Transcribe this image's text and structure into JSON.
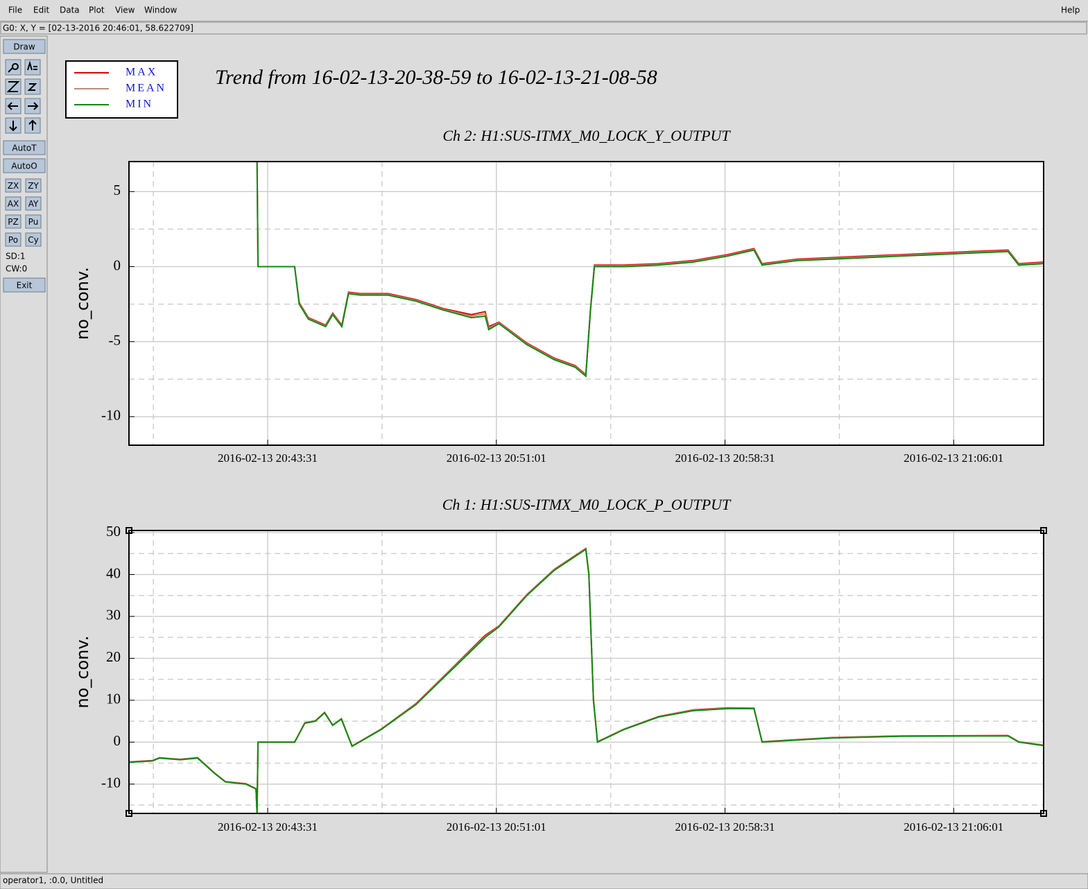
{
  "menu": [
    "File",
    "Edit",
    "Data",
    "Plot",
    "View",
    "Window"
  ],
  "help": "Help",
  "status": "G0: X, Y = [02-13-2016 20:46:01, 58.622709]",
  "toolbar": {
    "draw": "Draw",
    "auto": [
      "AutoT",
      "AutoO"
    ],
    "buttons": [
      "ZX",
      "ZY",
      "AX",
      "AY",
      "PZ",
      "Pu",
      "Po",
      "Cy"
    ],
    "info": [
      "SD:1",
      "CW:0"
    ],
    "exit": "Exit"
  },
  "footer": "operator1, :0.0, Untitled",
  "trend_title": "Trend from 16-02-13-20-38-59 to 16-02-13-21-08-58",
  "chart_data": [
    {
      "type": "line",
      "title": "Ch 2: H1:SUS-ITMX_M0_LOCK_Y_OUTPUT",
      "ylabel": "no_conv.",
      "x": [
        "2016-02-13 20:43:10",
        "2016-02-13 20:43:12",
        "2016-02-13 20:44:24",
        "2016-02-13 20:44:33",
        "2016-02-13 20:44:51",
        "2016-02-13 20:45:25",
        "2016-02-13 20:45:39",
        "2016-02-13 20:45:57",
        "2016-02-13 20:46:10",
        "2016-02-13 20:46:33",
        "2016-02-13 20:47:28",
        "2016-02-13 20:48:23",
        "2016-02-13 20:49:17",
        "2016-02-13 20:50:12",
        "2016-02-13 20:50:39",
        "2016-02-13 20:50:46",
        "2016-02-13 20:51:06",
        "2016-02-13 20:52:01",
        "2016-02-13 20:52:55",
        "2016-02-13 20:53:36",
        "2016-02-13 20:53:57",
        "2016-02-13 20:54:06",
        "2016-02-13 20:54:14",
        "2016-02-13 20:55:12",
        "2016-02-13 20:56:20",
        "2016-02-13 20:57:28",
        "2016-02-13 20:58:36",
        "2016-02-13 20:59:28",
        "2016-02-13 20:59:44",
        "2016-02-13 21:00:53",
        "2016-02-13 21:02:01",
        "2016-02-13 21:03:09",
        "2016-02-13 21:04:17",
        "2016-02-13 21:05:25",
        "2016-02-13 21:06:33",
        "2016-02-13 21:07:48",
        "2016-02-13 21:08:09",
        "2016-02-13 21:08:57"
      ],
      "series": [
        {
          "name": "MAX",
          "color": "#e00000",
          "values": [
            7,
            0,
            0,
            -2.4,
            -3.4,
            -3.9,
            -3.1,
            -3.9,
            -1.7,
            -1.8,
            -1.8,
            -2.2,
            -2.8,
            -3.2,
            -3.0,
            -4.0,
            -3.7,
            -5.1,
            -6.1,
            -6.6,
            -7.2,
            -2.9,
            0.1,
            0.1,
            0.2,
            0.4,
            0.8,
            1.2,
            0.2,
            0.5,
            0.6,
            0.7,
            0.8,
            0.9,
            1.0,
            1.1,
            0.2,
            0.3
          ]
        },
        {
          "name": "MEAN",
          "color": "#c08878",
          "values": [
            7,
            0,
            0,
            -2.45,
            -3.45,
            -3.95,
            -3.15,
            -3.95,
            -1.75,
            -1.85,
            -1.85,
            -2.25,
            -2.85,
            -3.3,
            -3.15,
            -4.1,
            -3.75,
            -5.15,
            -6.15,
            -6.65,
            -7.25,
            -2.95,
            0.05,
            0.05,
            0.15,
            0.35,
            0.75,
            1.15,
            0.15,
            0.45,
            0.55,
            0.65,
            0.75,
            0.85,
            0.95,
            1.05,
            0.15,
            0.25
          ]
        },
        {
          "name": "MIN",
          "color": "#108a10",
          "values": [
            7,
            0,
            0,
            -2.5,
            -3.5,
            -4,
            -3.2,
            -4,
            -1.8,
            -1.9,
            -1.9,
            -2.3,
            -2.9,
            -3.4,
            -3.3,
            -4.2,
            -3.8,
            -5.2,
            -6.2,
            -6.7,
            -7.3,
            -3,
            0,
            0,
            0.1,
            0.3,
            0.7,
            1.1,
            0.1,
            0.4,
            0.5,
            0.6,
            0.7,
            0.8,
            0.9,
            1,
            0.1,
            0.2
          ]
        }
      ],
      "xlim": [
        "2016-02-13 20:38:58",
        "2016-02-13 21:08:58"
      ],
      "xticks": [
        "2016-02-13 20:43:31",
        "2016-02-13 20:51:01",
        "2016-02-13 20:58:31",
        "2016-02-13 21:06:01"
      ],
      "ylim": [
        -11.9,
        7
      ],
      "yticks": [
        -10,
        -5,
        0,
        5
      ],
      "grid": true
    },
    {
      "type": "line",
      "title": "Ch 1: H1:SUS-ITMX_M0_LOCK_P_OUTPUT",
      "ylabel": "no_conv.",
      "x": [
        "2016-02-13 20:38:58",
        "2016-02-13 20:39:44",
        "2016-02-13 20:39:58",
        "2016-02-13 20:40:39",
        "2016-02-13 20:41:13",
        "2016-02-13 20:41:47",
        "2016-02-13 20:42:08",
        "2016-02-13 20:42:48",
        "2016-02-13 20:43:08",
        "2016-02-13 20:43:10",
        "2016-02-13 20:43:12",
        "2016-02-13 20:44:24",
        "2016-02-13 20:44:44",
        "2016-02-13 20:45:05",
        "2016-02-13 20:45:23",
        "2016-02-13 20:45:39",
        "2016-02-13 20:45:56",
        "2016-02-13 20:46:17",
        "2016-02-13 20:47:14",
        "2016-02-13 20:48:23",
        "2016-02-13 20:49:31",
        "2016-02-13 20:50:39",
        "2016-02-13 20:51:06",
        "2016-02-13 20:52:01",
        "2016-02-13 20:52:55",
        "2016-02-13 20:53:57",
        "2016-02-13 20:54:03",
        "2016-02-13 20:54:12",
        "2016-02-13 20:54:20",
        "2016-02-13 20:55:12",
        "2016-02-13 20:56:20",
        "2016-02-13 20:57:28",
        "2016-02-13 20:58:36",
        "2016-02-13 20:59:28",
        "2016-02-13 20:59:44",
        "2016-02-13 21:02:01",
        "2016-02-13 21:04:17",
        "2016-02-13 21:07:48",
        "2016-02-13 21:08:09",
        "2016-02-13 21:08:57"
      ],
      "series": [
        {
          "color": "#e00000",
          "values": [
            -4.7,
            -4.4,
            -3.7,
            -4.1,
            -3.7,
            -7.4,
            -9.4,
            -9.9,
            -11.1,
            -17,
            0,
            0,
            4.6,
            5.1,
            7.1,
            4.1,
            5.6,
            -0.9,
            3.1,
            9.2,
            17.3,
            25.5,
            27.7,
            35.2,
            41.2,
            46.2,
            40.2,
            10.2,
            0.1,
            3.1,
            6.1,
            7.7,
            8.2,
            8.1,
            0.1,
            1.1,
            1.5,
            1.6,
            0.1,
            -0.7
          ]
        },
        {
          "color": "#c08878",
          "values": [
            -4.75,
            -4.45,
            -3.75,
            -4.15,
            -3.75,
            -7.45,
            -9.45,
            -9.95,
            -11.15,
            -17,
            0,
            0,
            4.55,
            5.05,
            7.05,
            4.05,
            5.55,
            -0.95,
            3.05,
            9.1,
            17.15,
            25.2,
            27.6,
            35.1,
            41.1,
            46.1,
            40.1,
            10.1,
            0.05,
            3.05,
            6.05,
            7.6,
            8.1,
            8.05,
            0.05,
            1.05,
            1.45,
            1.55,
            0.05,
            -0.75
          ]
        },
        {
          "color": "#108a10",
          "values": [
            -4.8,
            -4.5,
            -3.8,
            -4.2,
            -3.8,
            -7.5,
            -9.5,
            -10,
            -11.2,
            -17,
            0,
            0,
            4.5,
            5,
            7,
            4,
            5.5,
            -1,
            3,
            9,
            17,
            25,
            27.5,
            35,
            41,
            46,
            40,
            10,
            0,
            3,
            6,
            7.5,
            8,
            8,
            0,
            1,
            1.4,
            1.5,
            0,
            -0.8
          ]
        }
      ],
      "xlim": [
        "2016-02-13 20:38:58",
        "2016-02-13 21:08:58"
      ],
      "xticks": [
        "2016-02-13 20:43:31",
        "2016-02-13 20:51:01",
        "2016-02-13 20:58:31",
        "2016-02-13 21:06:01"
      ],
      "ylim": [
        -17,
        50.5
      ],
      "yticks": [
        -10,
        0,
        10,
        20,
        30,
        40,
        50
      ],
      "grid": true
    }
  ]
}
